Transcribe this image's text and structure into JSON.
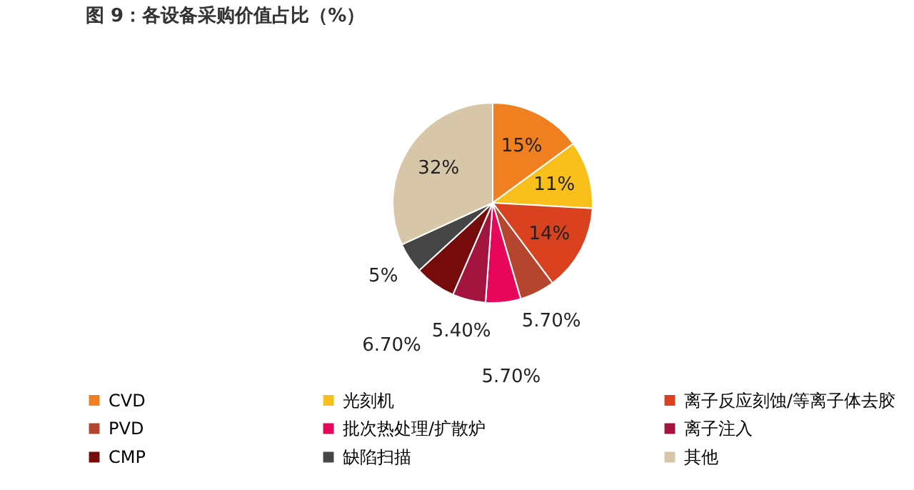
{
  "chart_data": {
    "type": "pie",
    "title": "图 9：各设备采购价值占比（%）",
    "categories": [
      "CVD",
      "光刻机",
      "离子反应刻蚀/等离子体去胶",
      "PVD",
      "批次热处理/扩散炉",
      "离子注入",
      "CMP",
      "缺陷扫描",
      "其他"
    ],
    "values": [
      15,
      11,
      14,
      5.7,
      5.7,
      5.4,
      6.7,
      5,
      32
    ],
    "value_labels": [
      "15%",
      "11%",
      "14%",
      "5.70%",
      "5.70%",
      "5.40%",
      "6.70%",
      "5%",
      "32%"
    ],
    "colors": [
      "#f0801f",
      "#f9c01c",
      "#d9411f",
      "#b5452f",
      "#e8065a",
      "#a3143f",
      "#760b0b",
      "#454545",
      "#d8c6a9"
    ],
    "legend": "bottom"
  }
}
